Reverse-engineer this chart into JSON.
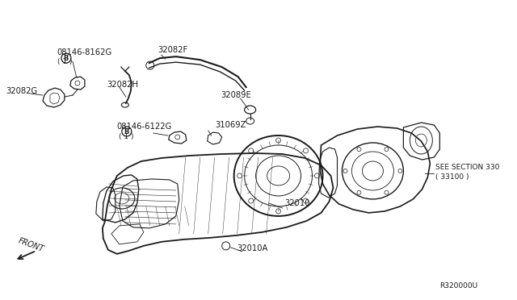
{
  "bg_color": "#ffffff",
  "line_color": "#1a1a1a",
  "labels": {
    "B1_code": "08146-8162G",
    "B1_sub": "( 1 )",
    "32082G": "32082G",
    "32082H": "32082H",
    "32082F": "32082F",
    "32089E": "32089E",
    "31069Z": "31069Z",
    "B2_code": "08146-6122G",
    "B2_sub": "( 1 )",
    "32010": "32010",
    "32010A": "32010A",
    "see_section": "SEE SECTION 330",
    "see_section_sub": "( 33100 )",
    "front": "FRONT",
    "ref": "R320000U"
  },
  "fs": 6.5,
  "fl": 7.2,
  "lw": 0.8
}
